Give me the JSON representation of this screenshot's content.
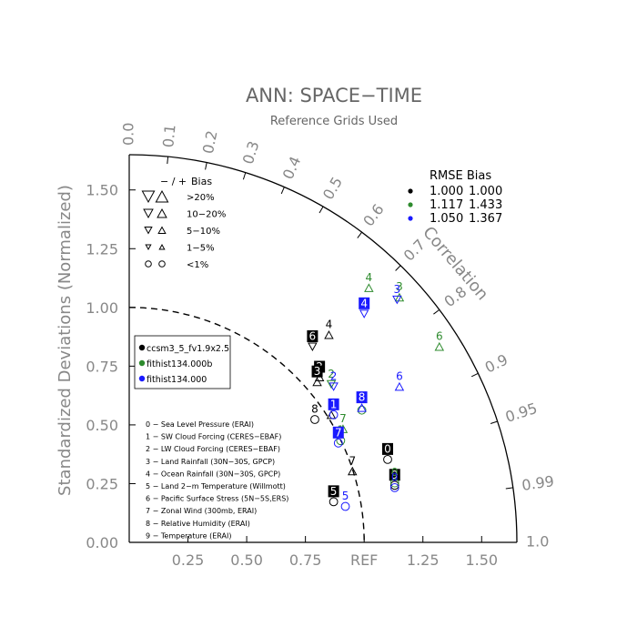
{
  "chart_data": {
    "type": "taylor",
    "title": "ANN: SPACE−TIME",
    "subtitle": "Reference Grids Used",
    "ylabel": "Standardized Deviations (Normalized)",
    "corr_label": "Correlation",
    "ref_label": "REF",
    "sd_max": 1.65,
    "x_ticks": [
      "0.25",
      "0.50",
      "0.75",
      "1.25",
      "1.50"
    ],
    "x_tick_values": [
      0.25,
      0.5,
      0.75,
      1.25,
      1.5
    ],
    "y_ticks": [
      "0.00",
      "0.25",
      "0.50",
      "0.75",
      "1.00",
      "1.25",
      "1.50"
    ],
    "y_tick_values": [
      0,
      0.25,
      0.5,
      0.75,
      1.0,
      1.25,
      1.5
    ],
    "corr_ticks": [
      "0.0",
      "0.1",
      "0.2",
      "0.3",
      "0.4",
      "0.5",
      "0.6",
      "0.7",
      "0.8",
      "0.9",
      "0.95",
      "0.99",
      "1.0"
    ],
    "corr_tick_values": [
      0.0,
      0.1,
      0.2,
      0.3,
      0.4,
      0.5,
      0.6,
      0.7,
      0.8,
      0.9,
      0.95,
      0.99,
      1.0
    ],
    "bias_legend": {
      "header_sign": "− / +",
      "header_bias": "Bias",
      "rows": [
        "&gt;20%",
        "10−20%",
        "5−10%",
        "1−5%",
        "&lt;1%"
      ]
    },
    "rmse_table": {
      "header": "RMSE Bias",
      "rows": [
        {
          "color": "#000000",
          "rmse": "1.000",
          "bias": "1.000"
        },
        {
          "color": "#2e8b2e",
          "rmse": "1.117",
          "bias": "1.433"
        },
        {
          "color": "#1a1aff",
          "rmse": "1.050",
          "bias": "1.367"
        }
      ]
    },
    "series": [
      {
        "name": "ccsm3_5_fv1.9x2.5",
        "color": "#000000"
      },
      {
        "name": "fithist134.000b",
        "color": "#2e8b2e"
      },
      {
        "name": "fithist134.000",
        "color": "#1a1aff"
      }
    ],
    "variables": [
      "0 − Sea Level Pressure (ERAI)",
      "1 − SW Cloud Forcing (CERES−EBAF)",
      "2 − LW Cloud Forcing (CERES−EBAF)",
      "3 − Land Rainfall (30N−30S, GPCP)",
      "4 − Ocean Rainfall (30N−30S, GPCP)",
      "5 − Land 2−m Temperature (Willmott)",
      "6 − Pacific Surface Stress (5N−5S,ERS)",
      "7 − Zonal Wind (300mb, ERAI)",
      "8 − Relative Humidity (ERAI)",
      "9 − Temperature (ERAI)"
    ],
    "points": [
      {
        "series": 0,
        "label": "0",
        "x": 1.1,
        "y": 0.38,
        "boxed": true,
        "sym": "o"
      },
      {
        "series": 0,
        "label": "1",
        "x": 0.86,
        "y": 0.57,
        "boxed": false,
        "sym": "tu"
      },
      {
        "series": 0,
        "label": "2",
        "x": 0.81,
        "y": 0.73,
        "boxed": true,
        "sym": "tu"
      },
      {
        "series": 0,
        "label": "3",
        "x": 0.8,
        "y": 0.71,
        "boxed": true,
        "sym": "tu"
      },
      {
        "series": 0,
        "label": "4",
        "x": 0.85,
        "y": 0.91,
        "boxed": false,
        "sym": "tu"
      },
      {
        "series": 0,
        "label": "5",
        "x": 0.87,
        "y": 0.2,
        "boxed": true,
        "sym": "o"
      },
      {
        "series": 0,
        "label": "6",
        "x": 0.78,
        "y": 0.86,
        "boxed": true,
        "sym": "td"
      },
      {
        "series": 0,
        "label": "7",
        "x": 0.95,
        "y": 0.33,
        "boxed": false,
        "sym": "tu"
      },
      {
        "series": 0,
        "label": "8",
        "x": 0.79,
        "y": 0.55,
        "boxed": false,
        "sym": "o"
      },
      {
        "series": 0,
        "label": "9",
        "x": 1.13,
        "y": 0.27,
        "boxed": true,
        "sym": "o"
      },
      {
        "series": 1,
        "label": "0",
        "x": 1.13,
        "y": 0.28,
        "boxed": false,
        "sym": "o"
      },
      {
        "series": 1,
        "label": "1",
        "x": 0.9,
        "y": 0.46,
        "boxed": false,
        "sym": "o"
      },
      {
        "series": 1,
        "label": "2",
        "x": 0.86,
        "y": 0.7,
        "boxed": false,
        "sym": "td"
      },
      {
        "series": 1,
        "label": "3",
        "x": 1.15,
        "y": 1.07,
        "boxed": false,
        "sym": "tu"
      },
      {
        "series": 1,
        "label": "4",
        "x": 1.02,
        "y": 1.11,
        "boxed": false,
        "sym": "tu"
      },
      {
        "series": 1,
        "label": "6",
        "x": 1.32,
        "y": 0.86,
        "boxed": false,
        "sym": "tu"
      },
      {
        "series": 1,
        "label": "7",
        "x": 0.91,
        "y": 0.51,
        "boxed": false,
        "sym": "tu"
      },
      {
        "series": 1,
        "label": "8",
        "x": 0.99,
        "y": 0.59,
        "boxed": false,
        "sym": "o"
      },
      {
        "series": 2,
        "label": "0",
        "x": 1.13,
        "y": 0.26,
        "boxed": false,
        "sym": "o"
      },
      {
        "series": 2,
        "label": "1",
        "x": 0.87,
        "y": 0.57,
        "boxed": true,
        "sym": "o"
      },
      {
        "series": 2,
        "label": "2",
        "x": 0.87,
        "y": 0.69,
        "boxed": false,
        "sym": "td"
      },
      {
        "series": 2,
        "label": "3",
        "x": 1.14,
        "y": 1.06,
        "boxed": false,
        "sym": "td"
      },
      {
        "series": 2,
        "label": "4",
        "x": 1.0,
        "y": 1.0,
        "boxed": true,
        "sym": "td"
      },
      {
        "series": 2,
        "label": "5",
        "x": 0.92,
        "y": 0.18,
        "boxed": false,
        "sym": "o"
      },
      {
        "series": 2,
        "label": "6",
        "x": 1.15,
        "y": 0.69,
        "boxed": false,
        "sym": "tu"
      },
      {
        "series": 2,
        "label": "7",
        "x": 0.89,
        "y": 0.45,
        "boxed": true,
        "sym": "o"
      },
      {
        "series": 2,
        "label": "8",
        "x": 0.99,
        "y": 0.6,
        "boxed": true,
        "sym": "tu"
      }
    ]
  }
}
